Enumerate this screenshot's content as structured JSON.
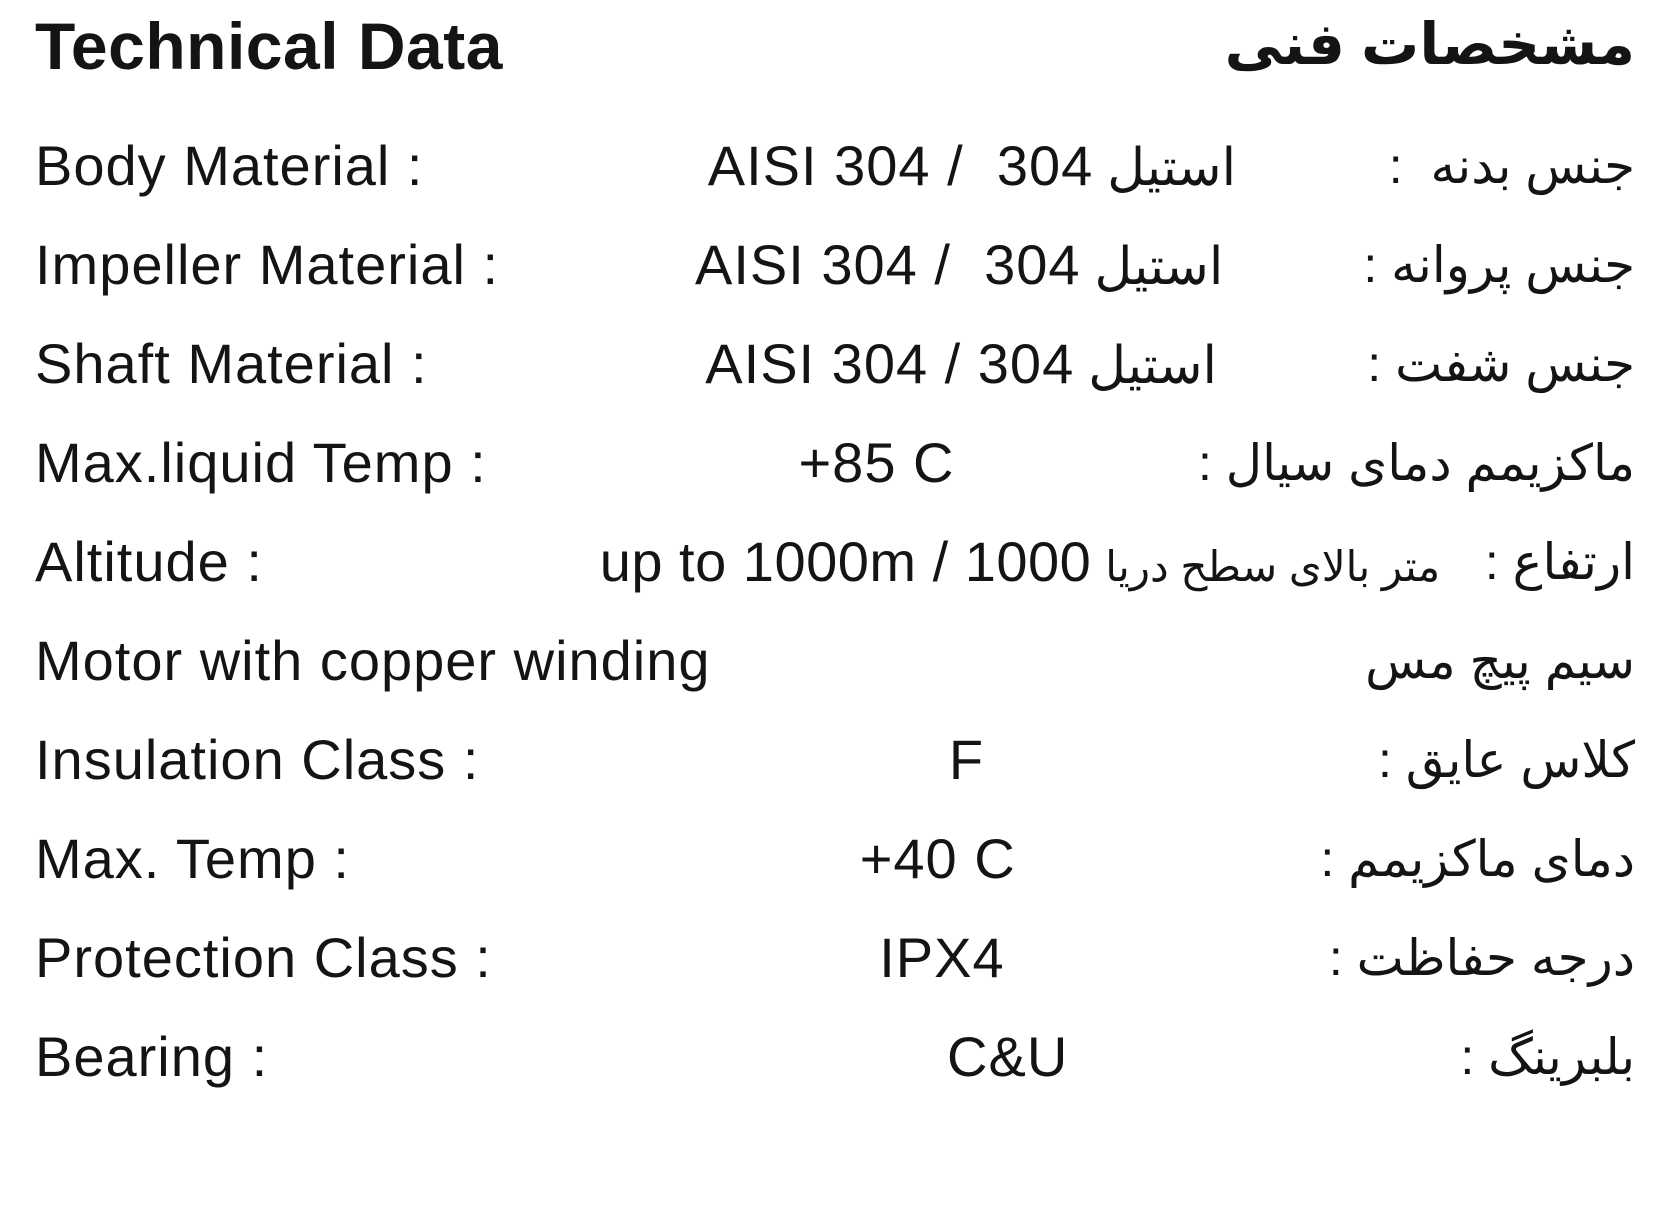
{
  "page": {
    "background": "#ffffff",
    "text_color": "#141414"
  },
  "header": {
    "title_en": "Technical Data",
    "title_fa": "مشخصات فنی"
  },
  "rows": [
    {
      "label_en": "Body Material :",
      "value_latin": "AISI 304 /  304",
      "value_fa": "استیل",
      "label_fa": "جنس بدنه  :"
    },
    {
      "label_en": "Impeller Material :",
      "value_latin": "AISI 304 /  304",
      "value_fa": "استیل",
      "label_fa": "جنس پروانه :"
    },
    {
      "label_en": "Shaft Material :",
      "value_latin": "AISI 304 / 304",
      "value_fa": "استیل",
      "label_fa": "جنس شفت :"
    },
    {
      "label_en": "Max.liquid Temp :",
      "value_latin": "+85 C",
      "label_fa": "ماکزیمم دمای سیال :"
    },
    {
      "label_en": "Altitude :",
      "value_latin": "up to 1000m / 1000",
      "value_fa": "متر بالای سطح دریا",
      "label_fa": "ارتفاع :"
    },
    {
      "label_en": "Motor with copper winding",
      "value_latin": "",
      "label_fa": "سیم پیچ مس"
    },
    {
      "label_en": "Insulation Class :",
      "value_latin": "F",
      "label_fa": "کلاس عایق :"
    },
    {
      "label_en": "Max. Temp :",
      "value_latin": "+40 C",
      "label_fa": "دمای ماکزیمم :"
    },
    {
      "label_en": "Protection Class :",
      "value_latin": "IPX4",
      "label_fa": "درجه حفاظت :"
    },
    {
      "label_en": "Bearing :",
      "value_latin": "C&U",
      "label_fa": "بلبرینگ :"
    }
  ]
}
